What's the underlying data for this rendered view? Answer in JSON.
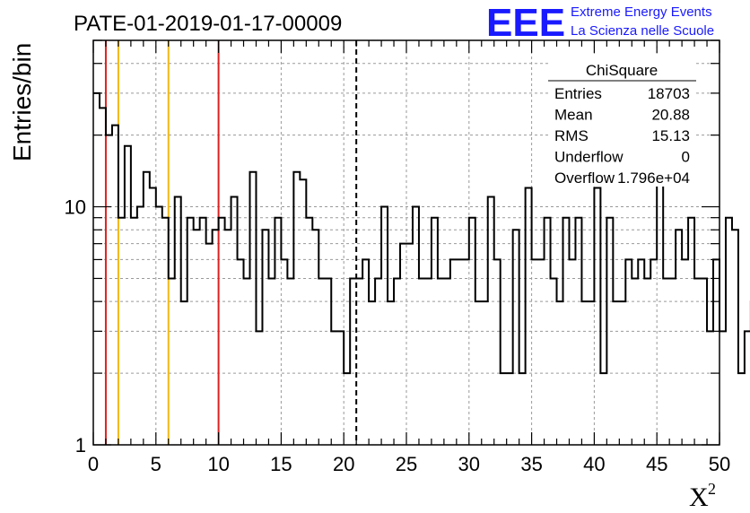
{
  "title": "PATE-01-2019-01-17-00009",
  "logo": {
    "mark": "EEE",
    "line1": "Extreme Energy Events",
    "line2": "La Scienza nelle Scuole",
    "color": "#1a1aff"
  },
  "stats": {
    "name": "ChiSquare",
    "rows": [
      {
        "label": "Entries",
        "value": "18703"
      },
      {
        "label": "Mean",
        "value": "20.88"
      },
      {
        "label": "RMS",
        "value": "15.13"
      },
      {
        "label": "Underflow",
        "value": "0"
      },
      {
        "label": "Overflow",
        "value": "1.796e+04"
      }
    ]
  },
  "chart_data": {
    "type": "histogram",
    "xlabel": "X",
    "xlabel_sup": "2",
    "ylabel": "Entries/bin",
    "xlim": [
      0,
      50
    ],
    "ylim": [
      1,
      50
    ],
    "yscale": "log",
    "grid": true,
    "bin_width": 0.5,
    "x_ticks": [
      0,
      5,
      10,
      15,
      20,
      25,
      30,
      35,
      40,
      45,
      50
    ],
    "y_ticks": [
      {
        "value": 1,
        "label": "1"
      },
      {
        "value": 10,
        "label": "10"
      }
    ],
    "values": [
      30,
      26,
      20,
      22,
      9,
      18,
      9,
      10,
      14,
      12,
      10,
      9,
      5,
      11,
      4,
      9,
      8,
      9,
      7,
      8,
      9,
      8,
      11,
      6,
      5,
      14,
      3,
      8,
      5,
      9,
      6,
      5,
      14,
      13,
      9,
      8,
      5,
      5,
      3,
      3,
      2,
      5,
      5,
      6,
      4,
      5,
      10,
      4,
      5,
      7,
      7,
      10,
      5,
      5,
      9,
      5,
      5,
      6,
      6,
      6,
      9,
      4,
      4,
      11,
      6,
      2,
      2,
      8,
      2,
      12,
      6,
      6,
      9,
      5,
      4,
      9,
      6,
      9,
      4,
      4,
      12,
      2,
      9,
      4,
      4,
      6,
      5,
      6,
      5,
      6,
      14,
      5,
      5,
      8,
      6,
      9,
      5,
      5,
      3,
      6,
      3,
      9,
      8,
      2,
      3,
      4
    ],
    "vlines": [
      {
        "x": 1,
        "color": "#dd2222",
        "style": "solid"
      },
      {
        "x": 2,
        "color": "#f2b814",
        "style": "solid"
      },
      {
        "x": 6,
        "color": "#f2b814",
        "style": "solid"
      },
      {
        "x": 10,
        "color": "#dd2222",
        "style": "solid"
      },
      {
        "x": 21,
        "color": "#000000",
        "style": "dashed"
      }
    ]
  }
}
